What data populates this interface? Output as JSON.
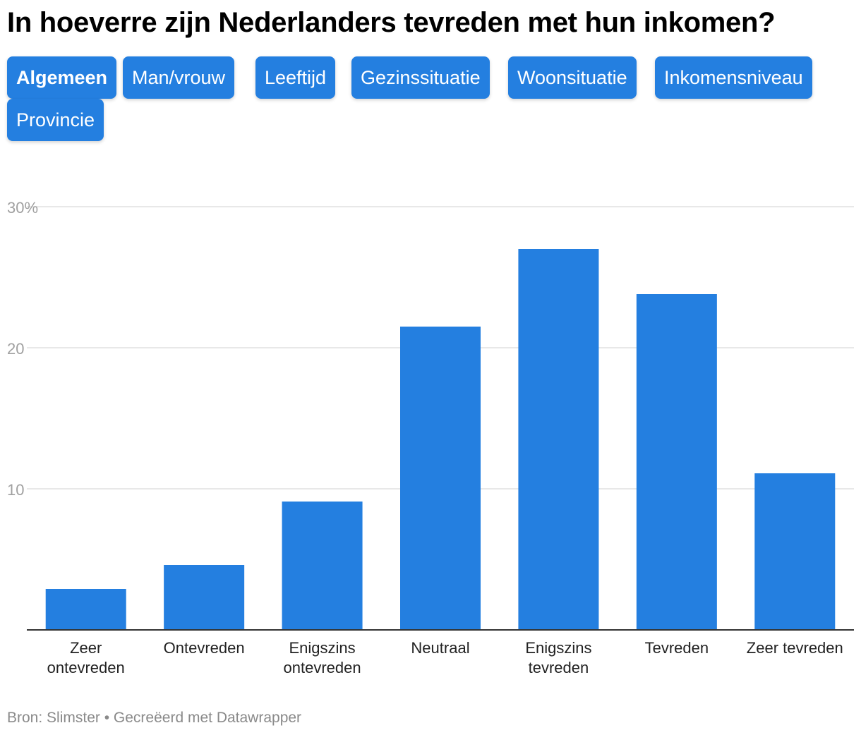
{
  "title": "In hoeverre zijn Nederlanders tevreden met hun inkomen?",
  "tabs": [
    {
      "label": "Algemeen",
      "active": true
    },
    {
      "label": "Man/vrouw",
      "active": false
    },
    {
      "label": "Leeftijd",
      "active": false
    },
    {
      "label": "Gezinssituatie",
      "active": false
    },
    {
      "label": "Woonsituatie",
      "active": false
    },
    {
      "label": "Inkomensniveau",
      "active": false
    },
    {
      "label": "Provincie",
      "active": false
    }
  ],
  "footer": {
    "source": "Bron: Slimster",
    "separator": "•",
    "credit": "Gecreëerd met Datawrapper"
  },
  "colors": {
    "bar": "#247fe0",
    "tab": "#247fe0",
    "grid": "#e1e1e1",
    "axis": "#333333",
    "tick_label": "#a0a0a0"
  },
  "chart_data": {
    "type": "bar",
    "title": "In hoeverre zijn Nederlanders tevreden met hun inkomen?",
    "xlabel": "",
    "ylabel": "",
    "ylim": [
      0,
      30
    ],
    "yticks": [
      {
        "value": 10,
        "label": "10"
      },
      {
        "value": 20,
        "label": "20"
      },
      {
        "value": 30,
        "label": "30%"
      }
    ],
    "categories": [
      [
        "Zeer",
        "ontevreden"
      ],
      [
        "Ontevreden"
      ],
      [
        "Enigszins",
        "ontevreden"
      ],
      [
        "Neutraal"
      ],
      [
        "Enigszins",
        "tevreden"
      ],
      [
        "Tevreden"
      ],
      [
        "Zeer tevreden"
      ]
    ],
    "values": [
      2.9,
      4.6,
      9.1,
      21.5,
      27.0,
      23.8,
      11.1
    ],
    "grid": true,
    "legend": "none"
  }
}
